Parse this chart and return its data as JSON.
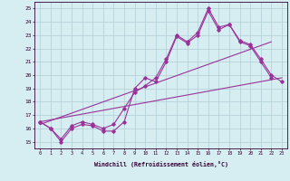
{
  "xlabel": "Windchill (Refroidissement éolien,°C)",
  "background_color": "#d6eef2",
  "grid_color": "#b0cdd4",
  "line_color": "#993399",
  "xlim": [
    -0.5,
    23.5
  ],
  "ylim": [
    14.5,
    25.5
  ],
  "xticks": [
    0,
    1,
    2,
    3,
    4,
    5,
    6,
    7,
    8,
    9,
    10,
    11,
    12,
    13,
    14,
    15,
    16,
    17,
    18,
    19,
    20,
    21,
    22,
    23
  ],
  "yticks": [
    15,
    16,
    17,
    18,
    19,
    20,
    21,
    22,
    23,
    24,
    25
  ],
  "line1_x": [
    0,
    1,
    2,
    3,
    4,
    5,
    6,
    7,
    8,
    9,
    10,
    11,
    12,
    13,
    14,
    15,
    16,
    17,
    18,
    19,
    20,
    21,
    22
  ],
  "line1_y": [
    16.5,
    16.0,
    15.0,
    16.0,
    16.3,
    16.2,
    15.8,
    15.8,
    16.5,
    19.0,
    19.8,
    19.5,
    21.0,
    22.9,
    22.4,
    23.0,
    24.8,
    23.4,
    23.8,
    22.5,
    22.2,
    21.0,
    19.8
  ],
  "line2_x": [
    0,
    1,
    2,
    3,
    4,
    5,
    6,
    7,
    8,
    9,
    10,
    11,
    12,
    13,
    14,
    15,
    16,
    17,
    18,
    19,
    20,
    21,
    22,
    23
  ],
  "line2_y": [
    16.5,
    16.0,
    15.2,
    16.2,
    16.5,
    16.3,
    16.0,
    16.3,
    17.5,
    18.7,
    19.2,
    19.8,
    21.2,
    23.0,
    22.5,
    23.2,
    25.0,
    23.6,
    23.8,
    22.6,
    22.3,
    21.2,
    20.0,
    19.5
  ],
  "line3_x": [
    0,
    23
  ],
  "line3_y": [
    16.5,
    19.8
  ],
  "line4_x": [
    0,
    22
  ],
  "line4_y": [
    16.3,
    22.5
  ]
}
